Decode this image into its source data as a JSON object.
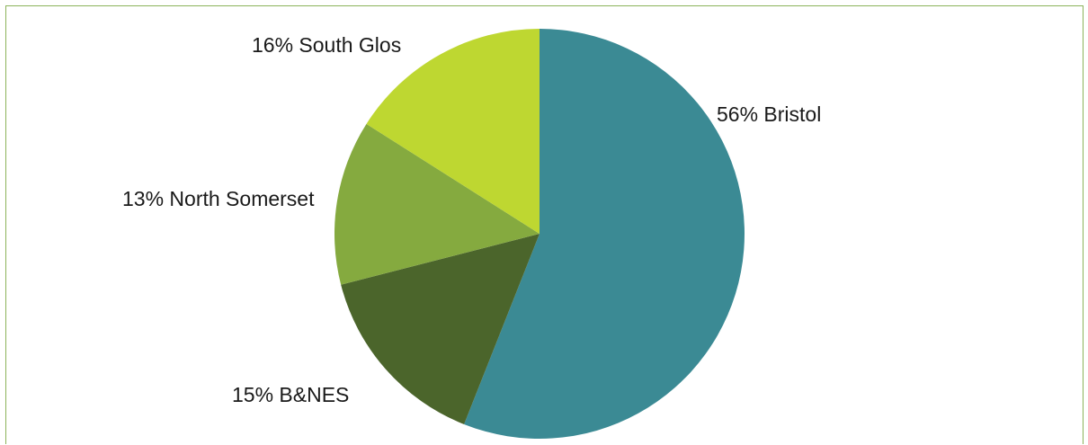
{
  "chart_data": {
    "type": "pie",
    "slices": [
      {
        "label": "56% Bristol",
        "value": 56,
        "color": "#3b8a94"
      },
      {
        "label": "15% B&NES",
        "value": 15,
        "color": "#4b652b"
      },
      {
        "label": "13% North Somerset",
        "value": 13,
        "color": "#85aa3f"
      },
      {
        "label": "16% South Glos",
        "value": 16,
        "color": "#bed731"
      }
    ],
    "start": "top",
    "direction": "clockwise",
    "legend": "none"
  }
}
